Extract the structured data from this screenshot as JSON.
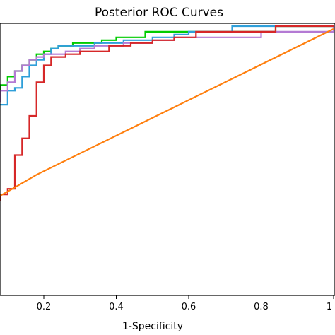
{
  "chart_data": {
    "type": "line",
    "title": "Posterior ROC Curves",
    "xlabel": "1-Specificity",
    "ylabel": "",
    "xlim": [
      0.03,
      1.0
    ],
    "ylim": [
      0.0,
      0.97
    ],
    "grid": false,
    "x_ticks": [
      0.2,
      0.4,
      0.6,
      0.8,
      1.0
    ],
    "x_tick_labels": [
      "0.2",
      "0.4",
      "0.6",
      "0.8",
      "1"
    ],
    "series": [
      {
        "color": "#00cc00",
        "x": [
          0.03,
          0.05,
          0.08,
          0.1,
          0.12,
          0.14,
          0.16,
          0.18,
          0.2,
          0.22,
          0.24,
          0.28,
          0.32,
          0.36,
          0.4,
          0.44,
          0.48,
          0.52,
          0.56,
          0.6,
          0.68,
          0.76,
          0.84,
          1.0
        ],
        "y": [
          0.7,
          0.72,
          0.75,
          0.78,
          0.8,
          0.82,
          0.84,
          0.86,
          0.87,
          0.88,
          0.89,
          0.9,
          0.9,
          0.91,
          0.92,
          0.92,
          0.94,
          0.94,
          0.94,
          0.94,
          0.94,
          0.94,
          0.96,
          0.96
        ]
      },
      {
        "color": "#2f9fd9",
        "x": [
          0.03,
          0.06,
          0.08,
          0.1,
          0.12,
          0.14,
          0.16,
          0.18,
          0.2,
          0.22,
          0.24,
          0.26,
          0.3,
          0.34,
          0.38,
          0.42,
          0.46,
          0.5,
          0.56,
          0.6,
          0.7,
          0.72,
          0.82,
          0.84,
          1.0
        ],
        "y": [
          0.66,
          0.68,
          0.68,
          0.73,
          0.74,
          0.78,
          0.82,
          0.84,
          0.86,
          0.88,
          0.89,
          0.89,
          0.89,
          0.9,
          0.9,
          0.91,
          0.91,
          0.92,
          0.93,
          0.94,
          0.94,
          0.96,
          0.96,
          0.96,
          0.96
        ]
      },
      {
        "color": "#b47ad4",
        "x": [
          0.03,
          0.06,
          0.08,
          0.1,
          0.12,
          0.14,
          0.16,
          0.18,
          0.2,
          0.22,
          0.26,
          0.3,
          0.34,
          0.38,
          0.42,
          0.46,
          0.5,
          0.56,
          0.6,
          0.7,
          0.8,
          0.92,
          1.0
        ],
        "y": [
          0.66,
          0.69,
          0.73,
          0.76,
          0.8,
          0.82,
          0.84,
          0.85,
          0.86,
          0.86,
          0.87,
          0.88,
          0.89,
          0.89,
          0.9,
          0.9,
          0.91,
          0.92,
          0.92,
          0.92,
          0.94,
          0.94,
          0.96
        ]
      },
      {
        "color": "#d62728",
        "x": [
          0.03,
          0.06,
          0.08,
          0.1,
          0.12,
          0.14,
          0.16,
          0.18,
          0.2,
          0.22,
          0.26,
          0.3,
          0.34,
          0.38,
          0.42,
          0.44,
          0.5,
          0.56,
          0.62,
          0.7,
          0.76,
          0.8,
          0.84,
          1.0
        ],
        "y": [
          0.32,
          0.34,
          0.36,
          0.38,
          0.5,
          0.56,
          0.64,
          0.76,
          0.82,
          0.85,
          0.86,
          0.87,
          0.87,
          0.89,
          0.89,
          0.9,
          0.91,
          0.92,
          0.94,
          0.94,
          0.94,
          0.94,
          0.96,
          0.96
        ]
      },
      {
        "color": "#ff7f0e",
        "x": [
          0.03,
          0.1,
          0.14,
          0.18,
          1.0
        ],
        "y": [
          0.32,
          0.37,
          0.4,
          0.43,
          0.95
        ]
      }
    ]
  }
}
